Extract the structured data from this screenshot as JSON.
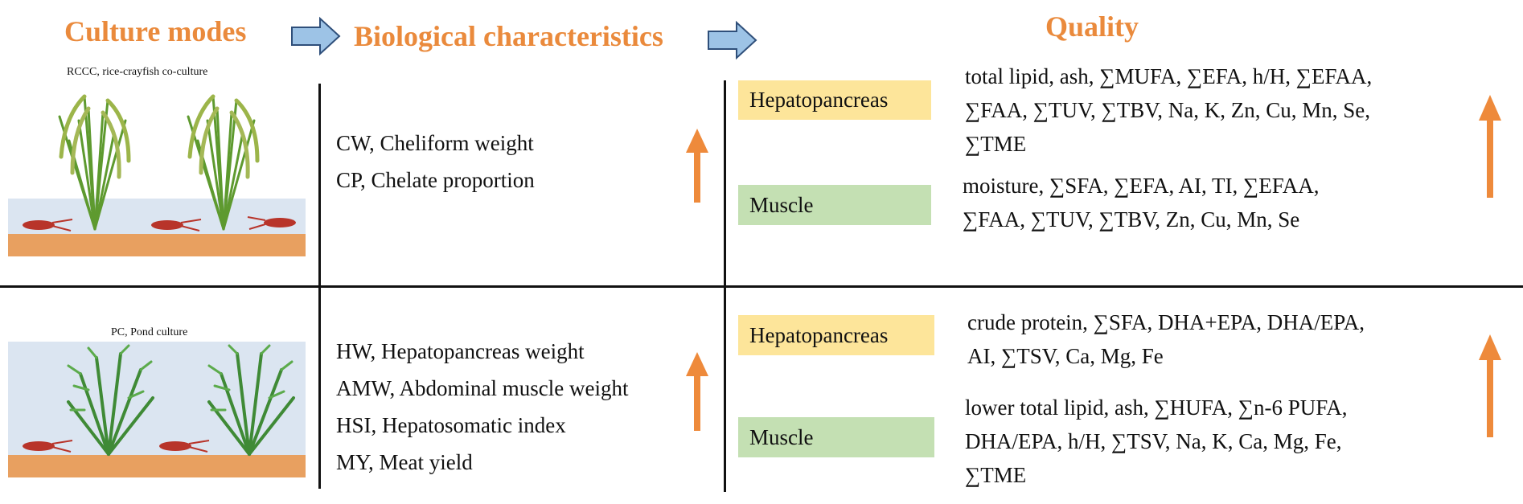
{
  "headers": {
    "culture_modes": "Culture modes",
    "biological_characteristics": "Biological characteristics",
    "quality": "Quality"
  },
  "rccc": {
    "caption": "RCCC, rice-crayfish co-culture",
    "biological": [
      "CW, Cheliform weight",
      "CP, Chelate proportion"
    ],
    "hepatopancreas": {
      "label": "Hepatopancreas",
      "lines": [
        "total lipid, ash, ∑MUFA, ∑EFA, h/H, ∑EFAA,",
        "∑FAA, ∑TUV, ∑TBV, Na, K, Zn, Cu, Mn, Se,",
        "∑TME"
      ]
    },
    "muscle": {
      "label": "Muscle",
      "lines": [
        "moisture, ∑SFA, ∑EFA, AI, TI, ∑EFAA,",
        "∑FAA, ∑TUV, ∑TBV, Zn, Cu, Mn, Se"
      ]
    }
  },
  "pc": {
    "caption": "PC,  Pond culture",
    "biological": [
      "HW, Hepatopancreas weight",
      "AMW, Abdominal muscle weight",
      "HSI, Hepatosomatic index",
      "MY, Meat yield"
    ],
    "hepatopancreas": {
      "label": "Hepatopancreas",
      "lines": [
        "crude protein, ∑SFA, DHA+EPA, DHA/EPA,",
        "AI, ∑TSV, Ca, Mg, Fe"
      ]
    },
    "muscle": {
      "label": "Muscle",
      "lines": [
        "lower total lipid, ash, ∑HUFA, ∑n-6 PUFA,",
        "DHA/EPA, h/H, ∑TSV, Na, K, Ca, Mg, Fe,",
        "∑TME"
      ]
    }
  },
  "colors": {
    "header_orange": "#ea8a3c",
    "arrow_orange": "#ee8a3b",
    "flow_arrow_blue": "#9dc3e6",
    "hepatopancreas_bg": "#fde59a",
    "muscle_bg": "#c4e0b3",
    "water": "#dbe5f1",
    "soil": "#e8a060"
  },
  "icons": [
    "flow-arrow-icon",
    "up-arrow-icon",
    "rice-plant-icon",
    "waterweed-icon",
    "crayfish-icon"
  ]
}
